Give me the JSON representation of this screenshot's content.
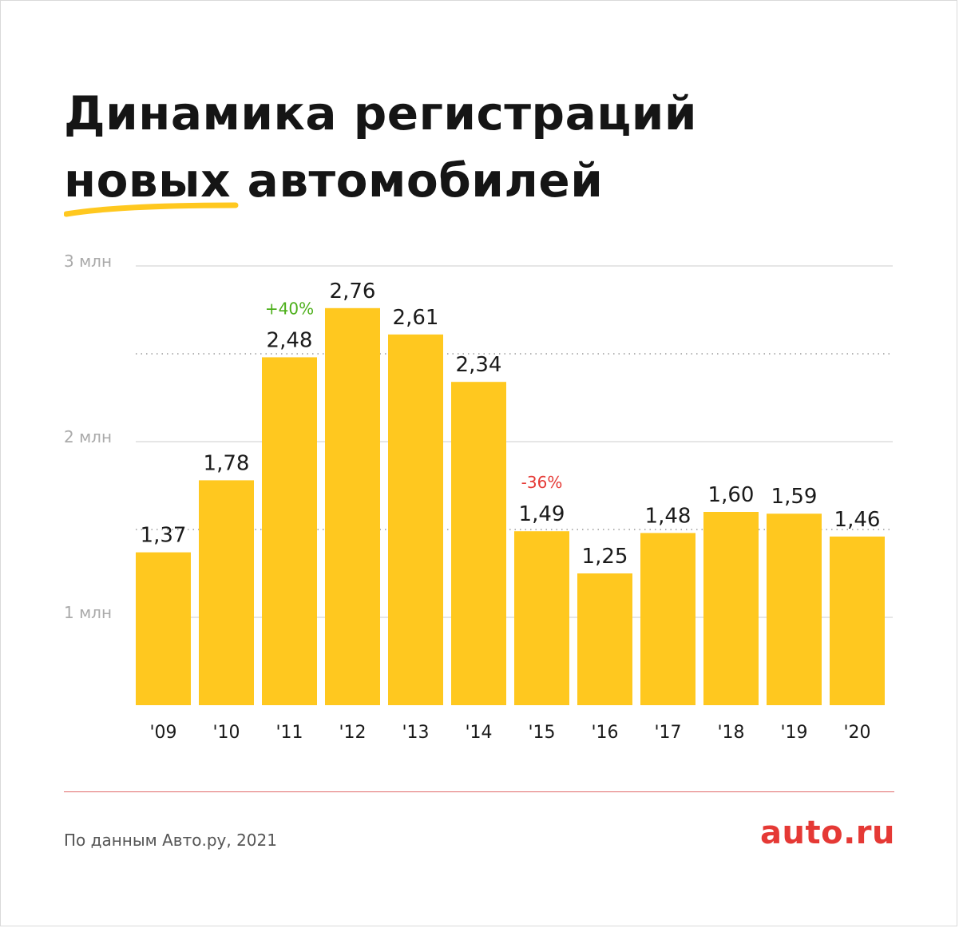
{
  "title": {
    "line1": "Динамика регистраций",
    "line2": "новых автомобилей"
  },
  "source": "По данным Авто.ру, 2021",
  "logo": "auto.ru",
  "colors": {
    "bar": "#FFC81F",
    "accent": "#FFC81F",
    "increase": "#4CAF1A",
    "decrease": "#E53935",
    "logo": "#E53935",
    "grid": "#cccccc",
    "axis_label": "#aaaaaa",
    "footer_line": "#e06a6a"
  },
  "chart_data": {
    "type": "bar",
    "categories": [
      "'09",
      "'10",
      "'11",
      "'12",
      "'13",
      "'14",
      "'15",
      "'16",
      "'17",
      "'18",
      "'19",
      "'20"
    ],
    "values": [
      1.37,
      1.78,
      2.48,
      2.76,
      2.61,
      2.34,
      1.49,
      1.25,
      1.48,
      1.6,
      1.59,
      1.46
    ],
    "value_labels": [
      "1,37",
      "1,78",
      "2,48",
      "2,76",
      "2,61",
      "2,34",
      "1,49",
      "1,25",
      "1,48",
      "1,60",
      "1,59",
      "1,46"
    ],
    "ylim": [
      0.5,
      3
    ],
    "yticks": [
      {
        "value": 1,
        "label": "1 млн"
      },
      {
        "value": 2,
        "label": "2 млн"
      },
      {
        "value": 3,
        "label": "3 млн"
      }
    ],
    "minor_gridlines": [
      1.5,
      2.5
    ],
    "annotations": [
      {
        "index": 2,
        "text": "+40%",
        "kind": "increase"
      },
      {
        "index": 6,
        "text": "-36%",
        "kind": "decrease"
      }
    ],
    "title": "",
    "xlabel": "",
    "ylabel": ""
  }
}
